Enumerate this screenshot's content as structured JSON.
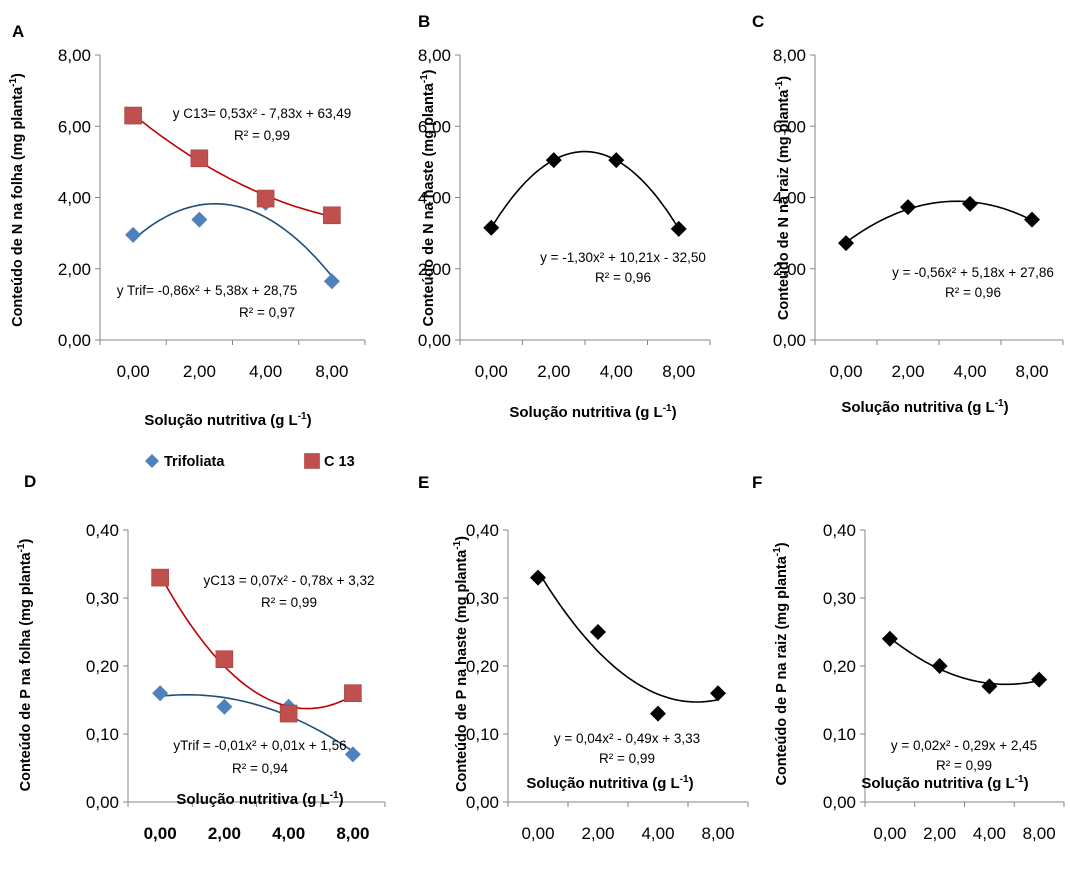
{
  "figure": {
    "legend": {
      "placement": "top, above panel D plot",
      "entries": [
        {
          "label": "Trifoliata",
          "marker": "diamond",
          "color": "#4F81BD"
        },
        {
          "label": "C 13",
          "marker": "square",
          "color": "#C0504D"
        }
      ]
    }
  },
  "chart_data": [
    {
      "panel": "A",
      "type": "scatter",
      "categories": [
        "0,00",
        "2,00",
        "4,00",
        "8,00"
      ],
      "ylabel": "Conteúdo de N na folha (mg planta-1)",
      "ylabel_main": "Conteúdo de N na folha (mg planta",
      "ylabel_sup": "-1",
      "ylabel_end": ")",
      "xlabel": "Solução nutritiva (g L-1)",
      "xlabel_main": "Solução nutritiva (g L",
      "xlabel_sup": "-1",
      "xlabel_end": ")",
      "ylim": [
        0,
        8
      ],
      "yticks": [
        "0,00",
        "2,00",
        "4,00",
        "6,00",
        "8,00"
      ],
      "grid": false,
      "series": [
        {
          "name": "Trifoliata",
          "color": "#4F81BD",
          "curve_color": "#1F4E79",
          "marker": "diamond",
          "values": [
            2.95,
            3.38,
            3.85,
            1.65
          ],
          "trend": {
            "a": -0.86,
            "b": 5.38,
            "c": 28.75
          },
          "eq_text": "y Trif= -0,86x² + 5,38x + 28,75",
          "r2_text": "R² = 0,97"
        },
        {
          "name": "C 13",
          "color": "#C0504D",
          "curve_color": "#C00000",
          "marker": "square",
          "values": [
            6.3,
            5.1,
            3.97,
            3.5
          ],
          "trend": {
            "a": 0.53,
            "b": -7.83,
            "c": 63.49
          },
          "eq_text": "y C13= 0,53x² - 7,83x + 63,49",
          "r2_text": "R² = 0,99"
        }
      ]
    },
    {
      "panel": "B",
      "type": "scatter",
      "categories": [
        "0,00",
        "2,00",
        "4,00",
        "8,00"
      ],
      "ylabel": "Conteúdo de N na haste (mg planta-1)",
      "ylabel_main": "Conteúdo de N na haste (mg planta",
      "ylabel_sup": "-1",
      "ylabel_end": ")",
      "xlabel": "Solução nutritiva (g L-1)",
      "xlabel_main": "Solução nutritiva (g L",
      "xlabel_sup": "-1",
      "xlabel_end": ")",
      "ylim": [
        0,
        8
      ],
      "yticks": [
        "0,00",
        "2,00",
        "4,00",
        "6,00",
        "8,00"
      ],
      "grid": false,
      "series": [
        {
          "name": "",
          "color": "#000000",
          "curve_color": "#000000",
          "marker": "diamond",
          "values": [
            3.15,
            5.05,
            5.05,
            3.12
          ],
          "trend": {
            "a": -1.3,
            "b": 10.21,
            "c": -32.5
          },
          "eq_text": "y = -1,30x² + 10,21x - 32,50",
          "r2_text": "R² = 0,96"
        }
      ]
    },
    {
      "panel": "C",
      "type": "scatter",
      "categories": [
        "0,00",
        "2,00",
        "4,00",
        "8,00"
      ],
      "ylabel": "Conteúdo de N na raiz (mg planta-1)",
      "ylabel_main": "Conteúdo de N na raiz (mg planta",
      "ylabel_sup": "-1",
      "ylabel_end": ")",
      "xlabel": "Solução nutritiva (g L-1)",
      "xlabel_main": "Solução nutritiva (g L",
      "xlabel_sup": "-1",
      "xlabel_end": ")",
      "ylim": [
        0,
        8
      ],
      "yticks": [
        "0,00",
        "2,00",
        "4,00",
        "6,00",
        "8,00"
      ],
      "grid": false,
      "series": [
        {
          "name": "",
          "color": "#000000",
          "curve_color": "#000000",
          "marker": "diamond",
          "values": [
            2.72,
            3.73,
            3.82,
            3.38
          ],
          "trend": {
            "a": -0.56,
            "b": 5.18,
            "c": 27.86
          },
          "eq_text": "y = -0,56x² + 5,18x + 27,86",
          "r2_text": "R² = 0,96"
        }
      ]
    },
    {
      "panel": "D",
      "type": "scatter",
      "categories": [
        "0,00",
        "2,00",
        "4,00",
        "8,00"
      ],
      "ylabel": "Conteúdo de P na folha (mg planta-1)",
      "ylabel_main": "Conteúdo de P na folha (mg planta",
      "ylabel_sup": "-1",
      "ylabel_end": ")",
      "xlabel": "Solução nutritiva (g L-1)",
      "xlabel_main": "Solução nutritiva (g L",
      "xlabel_sup": "-1",
      "xlabel_end": ")",
      "ylim": [
        0,
        0.4
      ],
      "yticks": [
        "0,00",
        "0,10",
        "0,20",
        "0,30",
        "0,40"
      ],
      "grid": false,
      "series": [
        {
          "name": "Trifoliata",
          "color": "#4F81BD",
          "curve_color": "#1F4E79",
          "marker": "diamond",
          "values": [
            0.16,
            0.14,
            0.14,
            0.07
          ],
          "trend": {
            "a": -0.01,
            "b": 0.01,
            "c": 1.56
          },
          "eq_text": "yTrif = -0,01x² + 0,01x + 1,56",
          "r2_text": "R² = 0,94"
        },
        {
          "name": "C 13",
          "color": "#C0504D",
          "curve_color": "#C00000",
          "marker": "square",
          "values": [
            0.33,
            0.21,
            0.13,
            0.16
          ],
          "trend": {
            "a": 0.07,
            "b": -0.78,
            "c": 3.32
          },
          "eq_text": "yC13 = 0,07x² - 0,78x + 3,32",
          "r2_text": "R² = 0,99"
        }
      ]
    },
    {
      "panel": "E",
      "type": "scatter",
      "categories": [
        "0,00",
        "2,00",
        "4,00",
        "8,00"
      ],
      "ylabel": "Conteúdo de P na haste (mg planta-1)",
      "ylabel_main": "Conteúdo de P na haste (mg planta",
      "ylabel_sup": "-1",
      "ylabel_end": ")",
      "xlabel": "Solução nutritiva (g L-1)",
      "xlabel_main": "Solução nutritiva (g L",
      "xlabel_sup": "-1",
      "xlabel_end": ")",
      "ylim": [
        0,
        0.4
      ],
      "yticks": [
        "0,00",
        "0,10",
        "0,20",
        "0,30",
        "0,40"
      ],
      "grid": false,
      "series": [
        {
          "name": "",
          "color": "#000000",
          "curve_color": "#000000",
          "marker": "diamond",
          "values": [
            0.33,
            0.25,
            0.13,
            0.16
          ],
          "trend": {
            "a": 0.04,
            "b": -0.49,
            "c": 3.33
          },
          "eq_text": "y = 0,04x² - 0,49x + 3,33",
          "r2_text": "R² = 0,99"
        }
      ]
    },
    {
      "panel": "F",
      "type": "scatter",
      "categories": [
        "0,00",
        "2,00",
        "4,00",
        "8,00"
      ],
      "ylabel": "Conteúdo de P na raiz (mg planta-1)",
      "ylabel_main": "Conteúdo de P na raiz (mg planta",
      "ylabel_sup": "-1",
      "ylabel_end": ")",
      "xlabel": "Solução nutritiva (g L-1)",
      "xlabel_main": "Solução nutritiva (g L",
      "xlabel_sup": "-1",
      "xlabel_end": ")",
      "ylim": [
        0,
        0.4
      ],
      "yticks": [
        "0,00",
        "0,10",
        "0,20",
        "0,30",
        "0,40"
      ],
      "grid": false,
      "series": [
        {
          "name": "",
          "color": "#000000",
          "curve_color": "#000000",
          "marker": "diamond",
          "values": [
            0.24,
            0.2,
            0.17,
            0.18
          ],
          "trend": {
            "a": 0.02,
            "b": -0.29,
            "c": 2.45
          },
          "eq_text": "y = 0,02x² - 0,29x + 2,45",
          "r2_text": "R² = 0,99"
        }
      ]
    }
  ]
}
